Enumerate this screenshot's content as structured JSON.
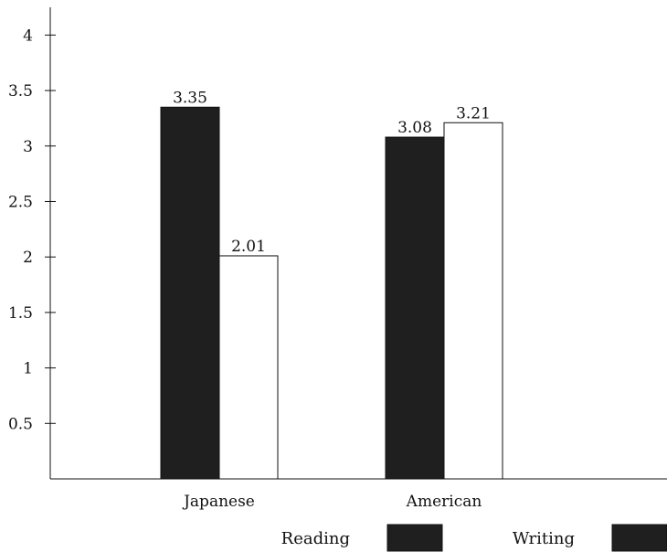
{
  "chart_data": {
    "type": "bar",
    "title": "",
    "xlabel": "",
    "ylabel": "",
    "categories": [
      "Japanese",
      "American"
    ],
    "series": [
      {
        "name": "Reading",
        "values": [
          3.35,
          3.08
        ],
        "color": "#1f1f1f"
      },
      {
        "name": "Writing",
        "values": [
          2.01,
          3.21
        ],
        "color": "#ffffff"
      }
    ],
    "data_labels": [
      [
        "3.35",
        "3.08"
      ],
      [
        "2.01",
        "3.21"
      ]
    ],
    "ylim": [
      0,
      4.25
    ],
    "yticks": [
      0.5,
      1,
      1.5,
      2,
      2.5,
      3,
      3.5,
      4
    ],
    "ytick_labels": [
      "0.5",
      "1",
      "1.5",
      "2",
      "2.5",
      "3",
      "3.5",
      "4"
    ],
    "grid": false,
    "legend_position": "bottom",
    "legend_swatch_colors": [
      "#1f1f1f",
      "#1f1f1f"
    ]
  }
}
